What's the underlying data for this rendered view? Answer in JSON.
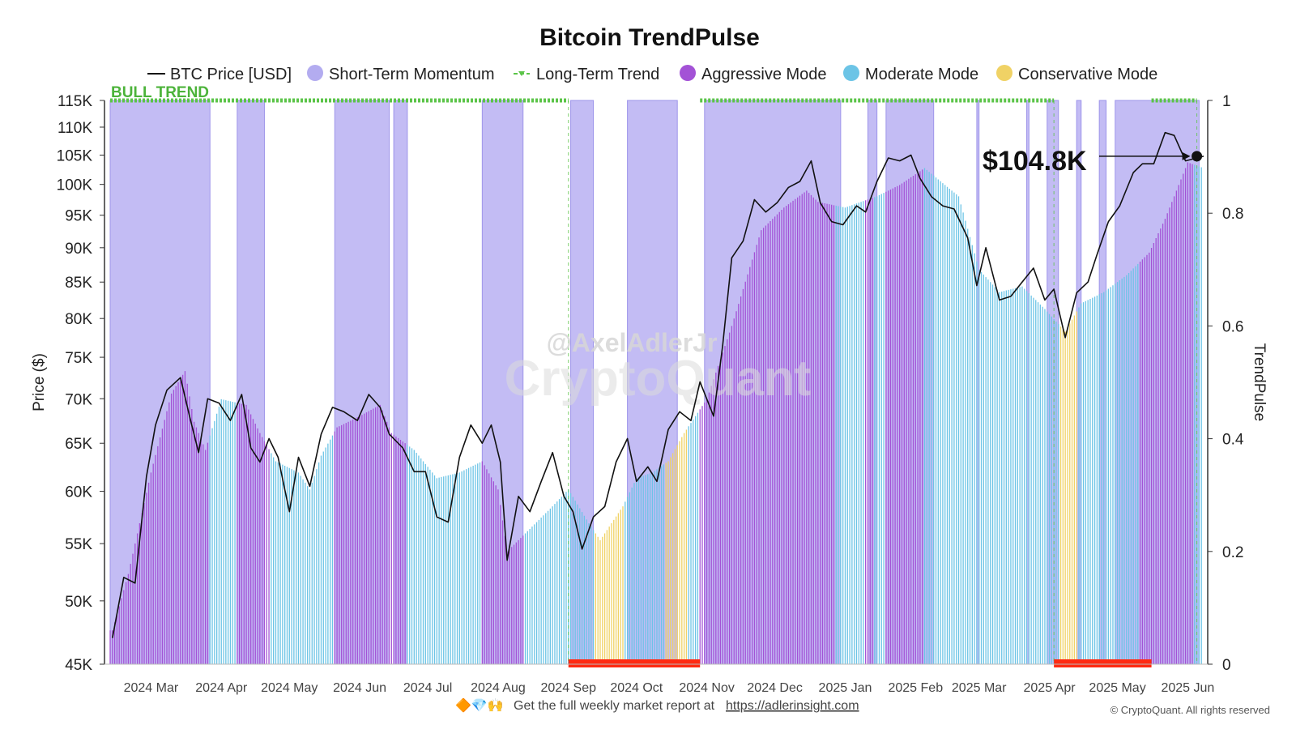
{
  "chart_data": {
    "type": "bar",
    "title": "Bitcoin TrendPulse",
    "ylabel": "Price ($)",
    "y2label": "TrendPulse",
    "y_scale": "log",
    "ylim": [
      45000,
      115000
    ],
    "y2lim": [
      0,
      1
    ],
    "y_ticks": [
      "115K",
      "110K",
      "105K",
      "100K",
      "95K",
      "90K",
      "85K",
      "80K",
      "75K",
      "70K",
      "65K",
      "60K",
      "55K",
      "50K",
      "45K"
    ],
    "y2_ticks": [
      "1",
      "0.8",
      "0.6",
      "0.4",
      "0.2",
      "0"
    ],
    "x_range": [
      "2024-02-12",
      "2025-06-08"
    ],
    "x_ticks": [
      {
        "label": "2024 Mar",
        "date": "2024-03-01"
      },
      {
        "label": "2024 Apr",
        "date": "2024-04-01"
      },
      {
        "label": "2024 May",
        "date": "2024-05-01"
      },
      {
        "label": "2024 Jun",
        "date": "2024-06-01"
      },
      {
        "label": "2024 Jul",
        "date": "2024-07-01"
      },
      {
        "label": "2024 Aug",
        "date": "2024-08-01"
      },
      {
        "label": "2024 Sep",
        "date": "2024-09-01"
      },
      {
        "label": "2024 Oct",
        "date": "2024-10-01"
      },
      {
        "label": "2024 Nov",
        "date": "2024-11-01"
      },
      {
        "label": "2024 Dec",
        "date": "2024-12-01"
      },
      {
        "label": "2025 Jan",
        "date": "2025-01-01"
      },
      {
        "label": "2025 Feb",
        "date": "2025-02-01"
      },
      {
        "label": "2025 Mar",
        "date": "2025-03-01"
      },
      {
        "label": "2025 Apr",
        "date": "2025-04-01"
      },
      {
        "label": "2025 May",
        "date": "2025-05-01"
      },
      {
        "label": "2025 Jun",
        "date": "2025-06-01"
      }
    ],
    "legend": {
      "placement": "top",
      "items": [
        {
          "name": "BTC Price [USD]",
          "marker": "line",
          "color": "#111111"
        },
        {
          "name": "Short-Term Momentum",
          "marker": "dot",
          "color": "#b3acf0"
        },
        {
          "name": "Long-Term Trend",
          "marker": "dashed-line",
          "color": "#5bc448"
        },
        {
          "name": "Aggressive Mode",
          "marker": "dot",
          "color": "#a352d6"
        },
        {
          "name": "Moderate Mode",
          "marker": "dot",
          "color": "#6cc4e6"
        },
        {
          "name": "Conservative Mode",
          "marker": "dot",
          "color": "#f0d265"
        }
      ]
    },
    "colors": {
      "price": "#111111",
      "momentum_band": "#b8b0f2",
      "trend": "#5bc448",
      "aggressive": "#a352d6",
      "moderate": "#6cc4e6",
      "conservative": "#f0d265",
      "bear_marker": "#ff2a12"
    },
    "btc_price": {
      "dates": [
        "2024-02-13",
        "2024-02-18",
        "2024-02-23",
        "2024-02-28",
        "2024-03-03",
        "2024-03-08",
        "2024-03-14",
        "2024-03-18",
        "2024-03-22",
        "2024-03-26",
        "2024-03-31",
        "2024-04-05",
        "2024-04-10",
        "2024-04-14",
        "2024-04-18",
        "2024-04-22",
        "2024-04-26",
        "2024-05-01",
        "2024-05-05",
        "2024-05-10",
        "2024-05-15",
        "2024-05-20",
        "2024-05-25",
        "2024-05-31",
        "2024-06-05",
        "2024-06-10",
        "2024-06-14",
        "2024-06-20",
        "2024-06-25",
        "2024-06-30",
        "2024-07-05",
        "2024-07-10",
        "2024-07-15",
        "2024-07-20",
        "2024-07-25",
        "2024-07-29",
        "2024-08-02",
        "2024-08-05",
        "2024-08-10",
        "2024-08-15",
        "2024-08-20",
        "2024-08-25",
        "2024-08-30",
        "2024-09-03",
        "2024-09-07",
        "2024-09-12",
        "2024-09-17",
        "2024-09-22",
        "2024-09-27",
        "2024-10-01",
        "2024-10-06",
        "2024-10-10",
        "2024-10-15",
        "2024-10-20",
        "2024-10-25",
        "2024-10-29",
        "2024-11-04",
        "2024-11-08",
        "2024-11-12",
        "2024-11-17",
        "2024-11-22",
        "2024-11-27",
        "2024-12-02",
        "2024-12-07",
        "2024-12-12",
        "2024-12-17",
        "2024-12-21",
        "2024-12-26",
        "2024-12-31",
        "2025-01-06",
        "2025-01-10",
        "2025-01-15",
        "2025-01-20",
        "2025-01-25",
        "2025-01-30",
        "2025-02-03",
        "2025-02-08",
        "2025-02-13",
        "2025-02-18",
        "2025-02-24",
        "2025-02-28",
        "2025-03-04",
        "2025-03-10",
        "2025-03-15",
        "2025-03-20",
        "2025-03-25",
        "2025-03-30",
        "2025-04-03",
        "2025-04-08",
        "2025-04-13",
        "2025-04-18",
        "2025-04-22",
        "2025-04-27",
        "2025-05-02",
        "2025-05-08",
        "2025-05-12",
        "2025-05-17",
        "2025-05-22",
        "2025-05-26",
        "2025-05-31",
        "2025-06-05",
        "2025-06-08"
      ],
      "values": [
        47000,
        52000,
        51500,
        61500,
        67000,
        71000,
        72500,
        68000,
        64000,
        70000,
        69500,
        67500,
        70500,
        64500,
        63000,
        65500,
        63500,
        58000,
        63500,
        60500,
        66000,
        69000,
        68500,
        67500,
        70500,
        69000,
        66000,
        64500,
        62000,
        62000,
        57500,
        57000,
        63500,
        67000,
        65000,
        67000,
        63000,
        53500,
        59500,
        58000,
        61000,
        64000,
        59500,
        58000,
        54500,
        57500,
        58500,
        63000,
        65500,
        61000,
        62500,
        61000,
        66500,
        68500,
        67500,
        72000,
        68000,
        76500,
        88500,
        91000,
        97500,
        95500,
        97000,
        99500,
        100500,
        104000,
        97000,
        94000,
        93500,
        96500,
        95500,
        100500,
        104500,
        104000,
        105000,
        101000,
        98000,
        96500,
        96000,
        91500,
        84500,
        90000,
        82500,
        83000,
        85000,
        87000,
        82500,
        84000,
        77500,
        83500,
        85000,
        89000,
        94000,
        96500,
        102000,
        103500,
        103500,
        109000,
        108500,
        104000,
        104500,
        104800
      ]
    },
    "trendpulse": {
      "dates": [
        "2024-02-13",
        "2024-02-20",
        "2024-03-01",
        "2024-03-10",
        "2024-03-16",
        "2024-03-20",
        "2024-03-25",
        "2024-04-01",
        "2024-04-12",
        "2024-04-18",
        "2024-04-25",
        "2024-05-05",
        "2024-05-10",
        "2024-05-15",
        "2024-05-22",
        "2024-06-01",
        "2024-06-10",
        "2024-06-15",
        "2024-06-25",
        "2024-07-05",
        "2024-07-15",
        "2024-07-25",
        "2024-08-01",
        "2024-08-05",
        "2024-08-15",
        "2024-08-25",
        "2024-09-01",
        "2024-09-10",
        "2024-09-15",
        "2024-09-25",
        "2024-10-01",
        "2024-10-08",
        "2024-10-15",
        "2024-10-22",
        "2024-11-01",
        "2024-11-12",
        "2024-11-25",
        "2024-12-05",
        "2024-12-15",
        "2024-12-20",
        "2025-01-01",
        "2025-01-15",
        "2025-01-25",
        "2025-02-05",
        "2025-02-20",
        "2025-03-01",
        "2025-03-10",
        "2025-03-20",
        "2025-03-30",
        "2025-04-08",
        "2025-04-15",
        "2025-04-25",
        "2025-05-05",
        "2025-05-15",
        "2025-05-22",
        "2025-06-01",
        "2025-06-08"
      ],
      "values": [
        0.06,
        0.16,
        0.34,
        0.48,
        0.52,
        0.43,
        0.38,
        0.47,
        0.46,
        0.41,
        0.36,
        0.34,
        0.31,
        0.37,
        0.42,
        0.44,
        0.46,
        0.41,
        0.38,
        0.33,
        0.34,
        0.36,
        0.31,
        0.2,
        0.24,
        0.28,
        0.31,
        0.25,
        0.22,
        0.28,
        0.33,
        0.34,
        0.36,
        0.41,
        0.47,
        0.6,
        0.77,
        0.81,
        0.84,
        0.82,
        0.81,
        0.83,
        0.85,
        0.88,
        0.83,
        0.7,
        0.66,
        0.67,
        0.63,
        0.59,
        0.64,
        0.66,
        0.69,
        0.73,
        0.79,
        0.89,
        0.88
      ]
    },
    "modes": [
      {
        "mode": "aggressive",
        "start": "2024-02-12",
        "end": "2024-03-27"
      },
      {
        "mode": "moderate",
        "start": "2024-03-27",
        "end": "2024-04-08"
      },
      {
        "mode": "aggressive",
        "start": "2024-04-08",
        "end": "2024-04-23"
      },
      {
        "mode": "moderate",
        "start": "2024-04-23",
        "end": "2024-05-21"
      },
      {
        "mode": "aggressive",
        "start": "2024-05-21",
        "end": "2024-06-22"
      },
      {
        "mode": "moderate",
        "start": "2024-06-22",
        "end": "2024-07-25"
      },
      {
        "mode": "aggressive",
        "start": "2024-07-25",
        "end": "2024-08-13"
      },
      {
        "mode": "moderate",
        "start": "2024-08-13",
        "end": "2024-09-06"
      },
      {
        "mode": "moderate",
        "start": "2024-09-06",
        "end": "2024-09-13"
      },
      {
        "mode": "conservative",
        "start": "2024-09-13",
        "end": "2024-09-26"
      },
      {
        "mode": "moderate",
        "start": "2024-09-26",
        "end": "2024-10-14"
      },
      {
        "mode": "conservative",
        "start": "2024-10-14",
        "end": "2024-10-24"
      },
      {
        "mode": "moderate",
        "start": "2024-10-24",
        "end": "2024-10-29"
      },
      {
        "mode": "aggressive",
        "start": "2024-10-29",
        "end": "2024-12-28"
      },
      {
        "mode": "moderate",
        "start": "2024-12-28",
        "end": "2025-01-10"
      },
      {
        "mode": "aggressive",
        "start": "2025-01-10",
        "end": "2025-01-14"
      },
      {
        "mode": "moderate",
        "start": "2025-01-14",
        "end": "2025-01-19"
      },
      {
        "mode": "aggressive",
        "start": "2025-01-19",
        "end": "2025-02-05"
      },
      {
        "mode": "moderate",
        "start": "2025-02-05",
        "end": "2025-03-20"
      },
      {
        "mode": "moderate",
        "start": "2025-03-20",
        "end": "2025-04-06"
      },
      {
        "mode": "conservative",
        "start": "2025-04-06",
        "end": "2025-04-14"
      },
      {
        "mode": "moderate",
        "start": "2025-04-14",
        "end": "2025-05-11"
      },
      {
        "mode": "aggressive",
        "start": "2025-05-11",
        "end": "2025-06-04"
      },
      {
        "mode": "moderate",
        "start": "2025-06-04",
        "end": "2025-06-08"
      }
    ],
    "momentum_bands": [
      {
        "start": "2024-02-12",
        "end": "2024-03-27"
      },
      {
        "start": "2024-04-08",
        "end": "2024-04-20"
      },
      {
        "start": "2024-05-21",
        "end": "2024-06-14"
      },
      {
        "start": "2024-06-16",
        "end": "2024-06-22"
      },
      {
        "start": "2024-07-25",
        "end": "2024-08-12"
      },
      {
        "start": "2024-09-02",
        "end": "2024-09-12"
      },
      {
        "start": "2024-09-27",
        "end": "2024-10-19"
      },
      {
        "start": "2024-10-31",
        "end": "2024-12-30"
      },
      {
        "start": "2025-01-11",
        "end": "2025-01-15"
      },
      {
        "start": "2025-01-19",
        "end": "2025-02-09"
      },
      {
        "start": "2025-02-28",
        "end": "2025-03-01"
      },
      {
        "start": "2025-03-22",
        "end": "2025-03-23"
      },
      {
        "start": "2025-03-31",
        "end": "2025-04-05"
      },
      {
        "start": "2025-04-13",
        "end": "2025-04-15"
      },
      {
        "start": "2025-04-23",
        "end": "2025-04-26"
      },
      {
        "start": "2025-04-30",
        "end": "2025-06-06"
      }
    ],
    "long_term_trend": [
      {
        "start": "2024-02-12",
        "end": "2024-09-01"
      },
      {
        "start": "2024-10-29",
        "end": "2025-04-03"
      },
      {
        "start": "2025-05-16",
        "end": "2025-06-05"
      }
    ],
    "bear_markers": [
      {
        "start": "2024-09-01",
        "end": "2024-10-29"
      },
      {
        "start": "2025-04-03",
        "end": "2025-05-16"
      }
    ],
    "annotations": {
      "bull_label": "BULL TREND",
      "price_callout": "$104.8K",
      "callout_date": "2025-06-05",
      "callout_value": 104800
    }
  },
  "watermark": {
    "handle": "@AxelAdlerJr",
    "brand": "CryptoQuant"
  },
  "footer": {
    "emoji": "🔶💎🙌",
    "text": "Get the full weekly market report at",
    "link": "https://adlerinsight.com",
    "copyright": "© CryptoQuant. All rights reserved"
  }
}
